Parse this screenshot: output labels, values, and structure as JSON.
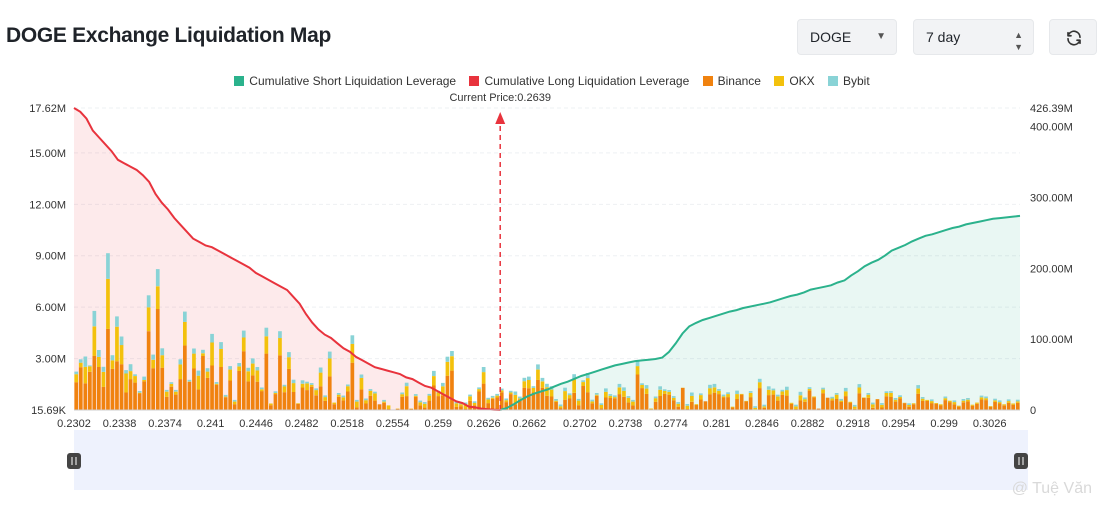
{
  "header": {
    "title": "DOGE Exchange Liquidation Map",
    "coin_select": "DOGE",
    "range_select": "7 day",
    "refresh_icon": "refresh-icon"
  },
  "colors": {
    "short": "#2bb28c",
    "long": "#e8333d",
    "binance": "#f0820f",
    "okx": "#f3c10c",
    "bybit": "#89d3d6",
    "current_price_line": "#e8333d"
  },
  "watermark": "@ Tuệ Văn",
  "chart_data": {
    "type": "bar",
    "legend": [
      {
        "name": "Cumulative Short Liquidation Leverage",
        "color": "#2bb28c"
      },
      {
        "name": "Cumulative Long Liquidation Leverage",
        "color": "#e8333d"
      },
      {
        "name": "Binance",
        "color": "#f0820f"
      },
      {
        "name": "OKX",
        "color": "#f3c10c"
      },
      {
        "name": "Bybit",
        "color": "#89d3d6"
      }
    ],
    "current_price_label": "Current Price:0.2639",
    "current_price": 0.2639,
    "x_range": [
      0.2302,
      0.305
    ],
    "x_ticks": [
      "0.2302",
      "0.2338",
      "0.2374",
      "0.241",
      "0.2446",
      "0.2482",
      "0.2518",
      "0.2554",
      "0.259",
      "0.2626",
      "0.2662",
      "0.2702",
      "0.2738",
      "0.2774",
      "0.281",
      "0.2846",
      "0.2882",
      "0.2918",
      "0.2954",
      "0.299",
      "0.3026"
    ],
    "y_left_ticks": [
      "15.69K",
      "3.00M",
      "6.00M",
      "9.00M",
      "12.00M",
      "15.00M",
      "17.62M"
    ],
    "y_left_range": [
      0,
      17620000
    ],
    "y_right_ticks": [
      "0",
      "100.00M",
      "200.00M",
      "300.00M",
      "400.00M",
      "426.39M"
    ],
    "y_right_range": [
      0,
      426390000
    ],
    "series": [
      {
        "name": "Binance",
        "values": [
          1.62,
          2.5,
          1.56,
          2.23,
          3.16,
          2.51,
          1.35,
          4.73,
          2.4,
          2.84,
          2.67,
          1.02,
          1.8,
          1.6,
          0.96,
          1.67,
          4.6,
          2.44,
          5.89,
          2.47,
          0.77,
          1.36,
          0.9,
          1.8,
          3.77,
          1.64,
          2.42,
          1.2,
          3.15,
          1.87,
          2.6,
          1.47,
          2.51,
          0.74,
          1.72,
          0.34,
          2.28,
          3.43,
          1.67,
          2.02,
          1.65,
          1.1,
          3.29,
          0.28,
          0.93,
          3.19,
          1.04,
          2.4,
          1.05,
          0.35,
          1.31,
          1.16,
          1.36,
          0.86,
          1.38,
          0.53,
          1.96,
          0.34,
          0.77,
          0.56,
          1.08,
          2.76,
          0.15,
          1.2,
          0.38,
          0.82,
          0.55,
          0.33,
          0.42,
          0.06,
          0,
          0.07,
          0.77,
          0.81,
          0.07,
          0.77,
          0.27,
          0.14,
          0.55,
          1.43,
          0.81,
          0.86,
          2.0,
          2.3,
          0.18,
          0.22,
          0.08,
          0.53,
          0.28,
          1.08,
          1.54,
          0.4,
          0.66,
          0.73,
          1.04,
          0.46,
          0.93,
          0.34,
          0.62,
          1.3,
          1.27,
          1.02,
          1.76,
          1.3,
          0.83,
          0.79,
          0.47,
          0.11,
          0.6,
          0.67,
          1.0,
          0.28,
          1.4,
          1.04,
          0.39,
          0.83,
          0.1,
          0.73,
          0.7,
          0.68,
          0.93,
          0.77,
          0.44,
          0.27,
          2.07,
          1.28,
          0.94,
          0.05,
          0.48,
          0.82,
          0.94,
          0.89,
          0.57,
          0.19,
          1.29,
          0.06,
          0.48,
          0.29,
          0.61,
          0.51,
          0.92,
          1.01,
          0.93,
          0.73,
          0.75,
          0.15,
          0.64,
          0.9,
          0.5,
          0.75,
          0.03,
          1.28,
          0.13,
          0.87,
          0.9,
          0.55,
          0.88,
          0.84,
          0.36,
          0.06,
          0.57,
          0.48,
          1.13,
          0.74,
          0.08,
          0.98,
          0.72,
          0.56,
          0.64,
          0.47,
          0.81,
          0.43,
          0.07,
          0.98,
          0.7,
          0.71,
          0.13,
          0.63,
          0.15,
          0.8,
          0.76,
          0.49,
          0.68,
          0.4,
          0.19,
          0.34,
          0.95,
          0.54,
          0.53,
          0.4,
          0.37,
          0.26,
          0.58,
          0.46,
          0.33,
          0.2,
          0.45,
          0.5,
          0.25,
          0.36,
          0.62,
          0.58,
          0.19,
          0.47,
          0.38,
          0.27,
          0.42,
          0.31,
          0.42
        ]
      },
      {
        "name": "OKX",
        "values": [
          0.47,
          0.26,
          0.96,
          0.32,
          1.72,
          0.59,
          0.87,
          2.92,
          0.5,
          2.02,
          1.12,
          1.11,
          0.47,
          0.38,
          0.05,
          0.08,
          1.39,
          0.49,
          1.33,
          0.73,
          0.3,
          0.16,
          0.17,
          0.86,
          1.37,
          0.02,
          0.87,
          0.8,
          0.16,
          0.37,
          1.34,
          0.06,
          1.05,
          0.04,
          0.64,
          0.15,
          0.26,
          0.8,
          0.59,
          0.69,
          0.66,
          0.11,
          1.01,
          0.1,
          0.06,
          1.01,
          0.33,
          0.68,
          0.52,
          0.04,
          0.22,
          0.39,
          0.11,
          0.3,
          0.8,
          0.22,
          1.05,
          0.09,
          0.12,
          0.18,
          0.31,
          1.1,
          0.34,
          0.67,
          0.19,
          0.3,
          0.42,
          0.0,
          0.07,
          0.21,
          0,
          0.02,
          0.15,
          0.58,
          0.02,
          0.06,
          0.18,
          0.22,
          0.29,
          0.55,
          0.21,
          0.52,
          0.81,
          0.84,
          0.21,
          0.12,
          0.26,
          0.27,
          0.13,
          0.14,
          0.67,
          0.21,
          0.06,
          0.11,
          0.11,
          0.11,
          0.09,
          0.54,
          0.06,
          0.38,
          0.48,
          0.27,
          0.6,
          0.37,
          0.5,
          0.4,
          0.07,
          0.11,
          0.5,
          0.2,
          0.79,
          0.27,
          0.23,
          0.82,
          0.11,
          0.06,
          0.19,
          0.33,
          0.13,
          0.07,
          0.39,
          0.35,
          0.27,
          0.22,
          0.49,
          0.18,
          0.31,
          0.04,
          0.21,
          0.36,
          0.17,
          0.17,
          0.14,
          0.17,
          0.01,
          0.19,
          0.34,
          0.05,
          0.26,
          0.0,
          0.35,
          0.31,
          0.19,
          0.07,
          0.18,
          0.04,
          0.29,
          0.04,
          0.03,
          0.25,
          0.09,
          0.34,
          0.08,
          0.31,
          0.25,
          0.24,
          0.2,
          0.32,
          0.06,
          0.15,
          0.29,
          0.15,
          0.1,
          0.05,
          0.0,
          0.22,
          0.0,
          0.11,
          0.25,
          0.08,
          0.28,
          0.05,
          0.13,
          0.33,
          0.03,
          0.18,
          0.2,
          0.01,
          0.15,
          0.19,
          0.24,
          0.11,
          0.08,
          0.02,
          0.1,
          0.05,
          0.3,
          0.12,
          0.06,
          0.12,
          0.04,
          0.07,
          0.11,
          0.08,
          0.13,
          0.05,
          0.09,
          0.1,
          0.06,
          0.07,
          0.12,
          0.11,
          0.04,
          0.09,
          0.08,
          0.06,
          0.1,
          0.07,
          0.08
        ]
      },
      {
        "name": "Bybit",
        "values": [
          0.15,
          0.2,
          0.6,
          0.05,
          0.9,
          0.4,
          0.3,
          1.5,
          0.3,
          0.6,
          0.5,
          0.2,
          0.4,
          0.1,
          0.1,
          0.2,
          0.7,
          0.3,
          1.0,
          0.4,
          0.1,
          0.1,
          0.1,
          0.3,
          0.6,
          0.1,
          0.3,
          0.3,
          0.2,
          0.2,
          0.5,
          0.1,
          0.4,
          0.1,
          0.2,
          0.1,
          0.2,
          0.4,
          0.2,
          0.3,
          0.2,
          0.1,
          0.5,
          0.0,
          0.1,
          0.4,
          0.1,
          0.3,
          0.2,
          0.0,
          0.2,
          0.1,
          0.1,
          0.1,
          0.3,
          0.1,
          0.4,
          0.0,
          0.1,
          0.1,
          0.1,
          0.5,
          0.1,
          0.2,
          0.1,
          0.1,
          0.1,
          0.0,
          0.1,
          0.0,
          0,
          0.0,
          0.1,
          0.2,
          0.0,
          0.1,
          0.1,
          0.1,
          0.1,
          0.3,
          0.1,
          0.2,
          0.3,
          0.3,
          0.1,
          0.1,
          0.1,
          0.1,
          0.1,
          0.1,
          0.3,
          0.1,
          0.1,
          0.1,
          0.1,
          0.1,
          0.1,
          0.2,
          0.1,
          0.2,
          0.2,
          0.1,
          0.3,
          0.2,
          0.2,
          0.2,
          0.1,
          0.1,
          0.2,
          0.1,
          0.3,
          0.1,
          0.1,
          0.3,
          0.1,
          0.1,
          0.1,
          0.2,
          0.1,
          0.1,
          0.2,
          0.2,
          0.1,
          0.1,
          0.3,
          0.1,
          0.2,
          0.0,
          0.1,
          0.2,
          0.1,
          0.1,
          0.1,
          0.1,
          0.0,
          0.1,
          0.2,
          0.0,
          0.1,
          0.0,
          0.2,
          0.2,
          0.1,
          0.1,
          0.1,
          0.0,
          0.2,
          0.0,
          0.0,
          0.1,
          0.1,
          0.2,
          0.1,
          0.2,
          0.1,
          0.1,
          0.1,
          0.2,
          0.0,
          0.1,
          0.2,
          0.1,
          0.1,
          0.0,
          0.0,
          0.1,
          0.0,
          0.1,
          0.1,
          0.1,
          0.2,
          0.0,
          0.1,
          0.2,
          0.0,
          0.1,
          0.1,
          0.0,
          0.1,
          0.1,
          0.1,
          0.1,
          0.1,
          0.0,
          0.1,
          0.0,
          0.2,
          0.1,
          0.0,
          0.1,
          0.0,
          0.0,
          0.1,
          0.0,
          0.1,
          0.0,
          0.1,
          0.1,
          0.0,
          0.0,
          0.1,
          0.1,
          0.0,
          0.1,
          0.1,
          0.0,
          0.1,
          0.0,
          0.1
        ]
      },
      {
        "name": "Cumulative Long Liquidation Leverage",
        "values": [
          17.62,
          17.4,
          17.0,
          16.3,
          15.9,
          15.5,
          15.1,
          14.6,
          14.4,
          14.2,
          14.0,
          13.7,
          13.3,
          12.6,
          12.1,
          11.7,
          11.2,
          10.8,
          10.4,
          10.0,
          9.8,
          9.6,
          9.5,
          9.3,
          9.1,
          8.9,
          8.7,
          8.5,
          8.3,
          8.0,
          7.8,
          7.6,
          7.4,
          7.2,
          7.0,
          6.6,
          6.2,
          5.6,
          5.1,
          4.7,
          4.4,
          4.2,
          3.9,
          3.6,
          3.4,
          3.1,
          2.9,
          2.7,
          2.5,
          2.4,
          2.3,
          2.2,
          2.1,
          1.9,
          1.8,
          1.6,
          1.4,
          1.3,
          1.1,
          0.9,
          0.7,
          0.5,
          0.4,
          0.2,
          0.15,
          0.08,
          0.04,
          0.02,
          0.0
        ]
      },
      {
        "name": "Cumulative Short Liquidation Leverage",
        "values": [
          0,
          3,
          8,
          14,
          19,
          23,
          26,
          29,
          33,
          37,
          40,
          44,
          48,
          51,
          54,
          57,
          60,
          63,
          65,
          67,
          69,
          70,
          71,
          72,
          74,
          82,
          94,
          108,
          118,
          123,
          127,
          130,
          133,
          136,
          139,
          141,
          144,
          146,
          148,
          150,
          152,
          155,
          158,
          161,
          163,
          166,
          170,
          172,
          174,
          176,
          180,
          183,
          190,
          196,
          203,
          208,
          212,
          218,
          225,
          229,
          233,
          238,
          242,
          246,
          248,
          251,
          254,
          257,
          259,
          262,
          264,
          266,
          268,
          270,
          271,
          272,
          273,
          274
        ]
      }
    ],
    "grid": true
  }
}
